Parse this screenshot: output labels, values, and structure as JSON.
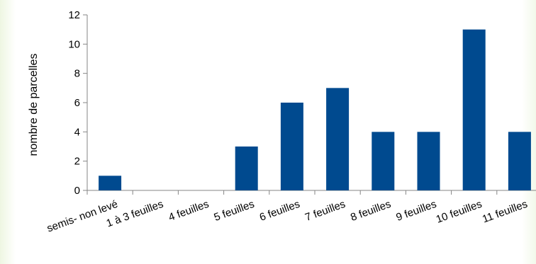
{
  "chart_data": {
    "type": "bar",
    "title": "",
    "xlabel": "",
    "ylabel": "nombre de parcelles",
    "categories": [
      "semis- non levé",
      "1 à 3 feuilles",
      "4 feuilles",
      "5 feuilles",
      "6 feuilles",
      "7 feuilles",
      "8 feuilles",
      "9 feuilles",
      "10 feuilles",
      "11 feuilles"
    ],
    "values": [
      1,
      0,
      0,
      3,
      6,
      7,
      4,
      4,
      11,
      4
    ],
    "ylim": [
      0,
      12
    ],
    "yticks": [
      0,
      2,
      4,
      6,
      8,
      10,
      12
    ],
    "grid": false,
    "legend": "none",
    "bar_color": "#004a8f",
    "axis_color": "#868686"
  }
}
